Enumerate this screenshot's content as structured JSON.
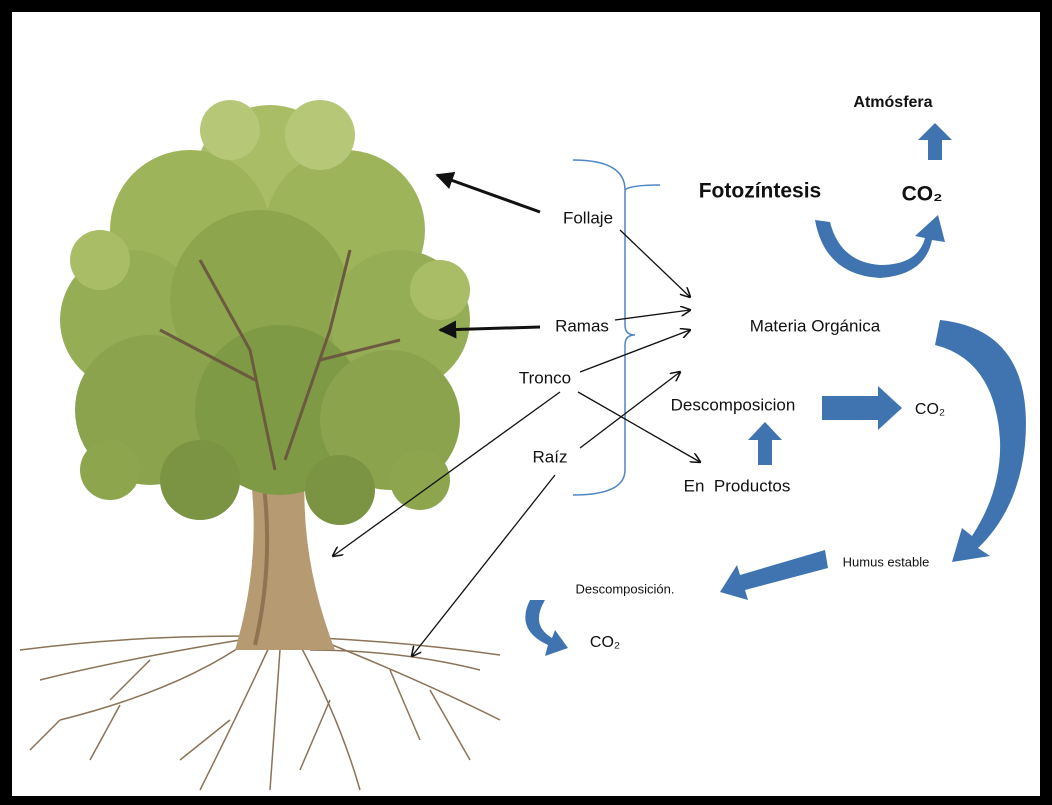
{
  "cycle": {
    "atmosphere": "Atmósfera",
    "photosynthesis": "Fotozíntesis",
    "co2_top": "CO₂"
  },
  "tree_parts": [
    "Follaje",
    "Ramas",
    "Tronco",
    "Raíz"
  ],
  "nodes": {
    "organic_matter": "Materia Orgánica",
    "decomposition": "Descomposicion",
    "co2_mid": "CO₂",
    "products": "En  Productos",
    "humus": "Humus estable",
    "decomposition_2": "Descomposición.",
    "co2_bottom": "CO₂"
  }
}
